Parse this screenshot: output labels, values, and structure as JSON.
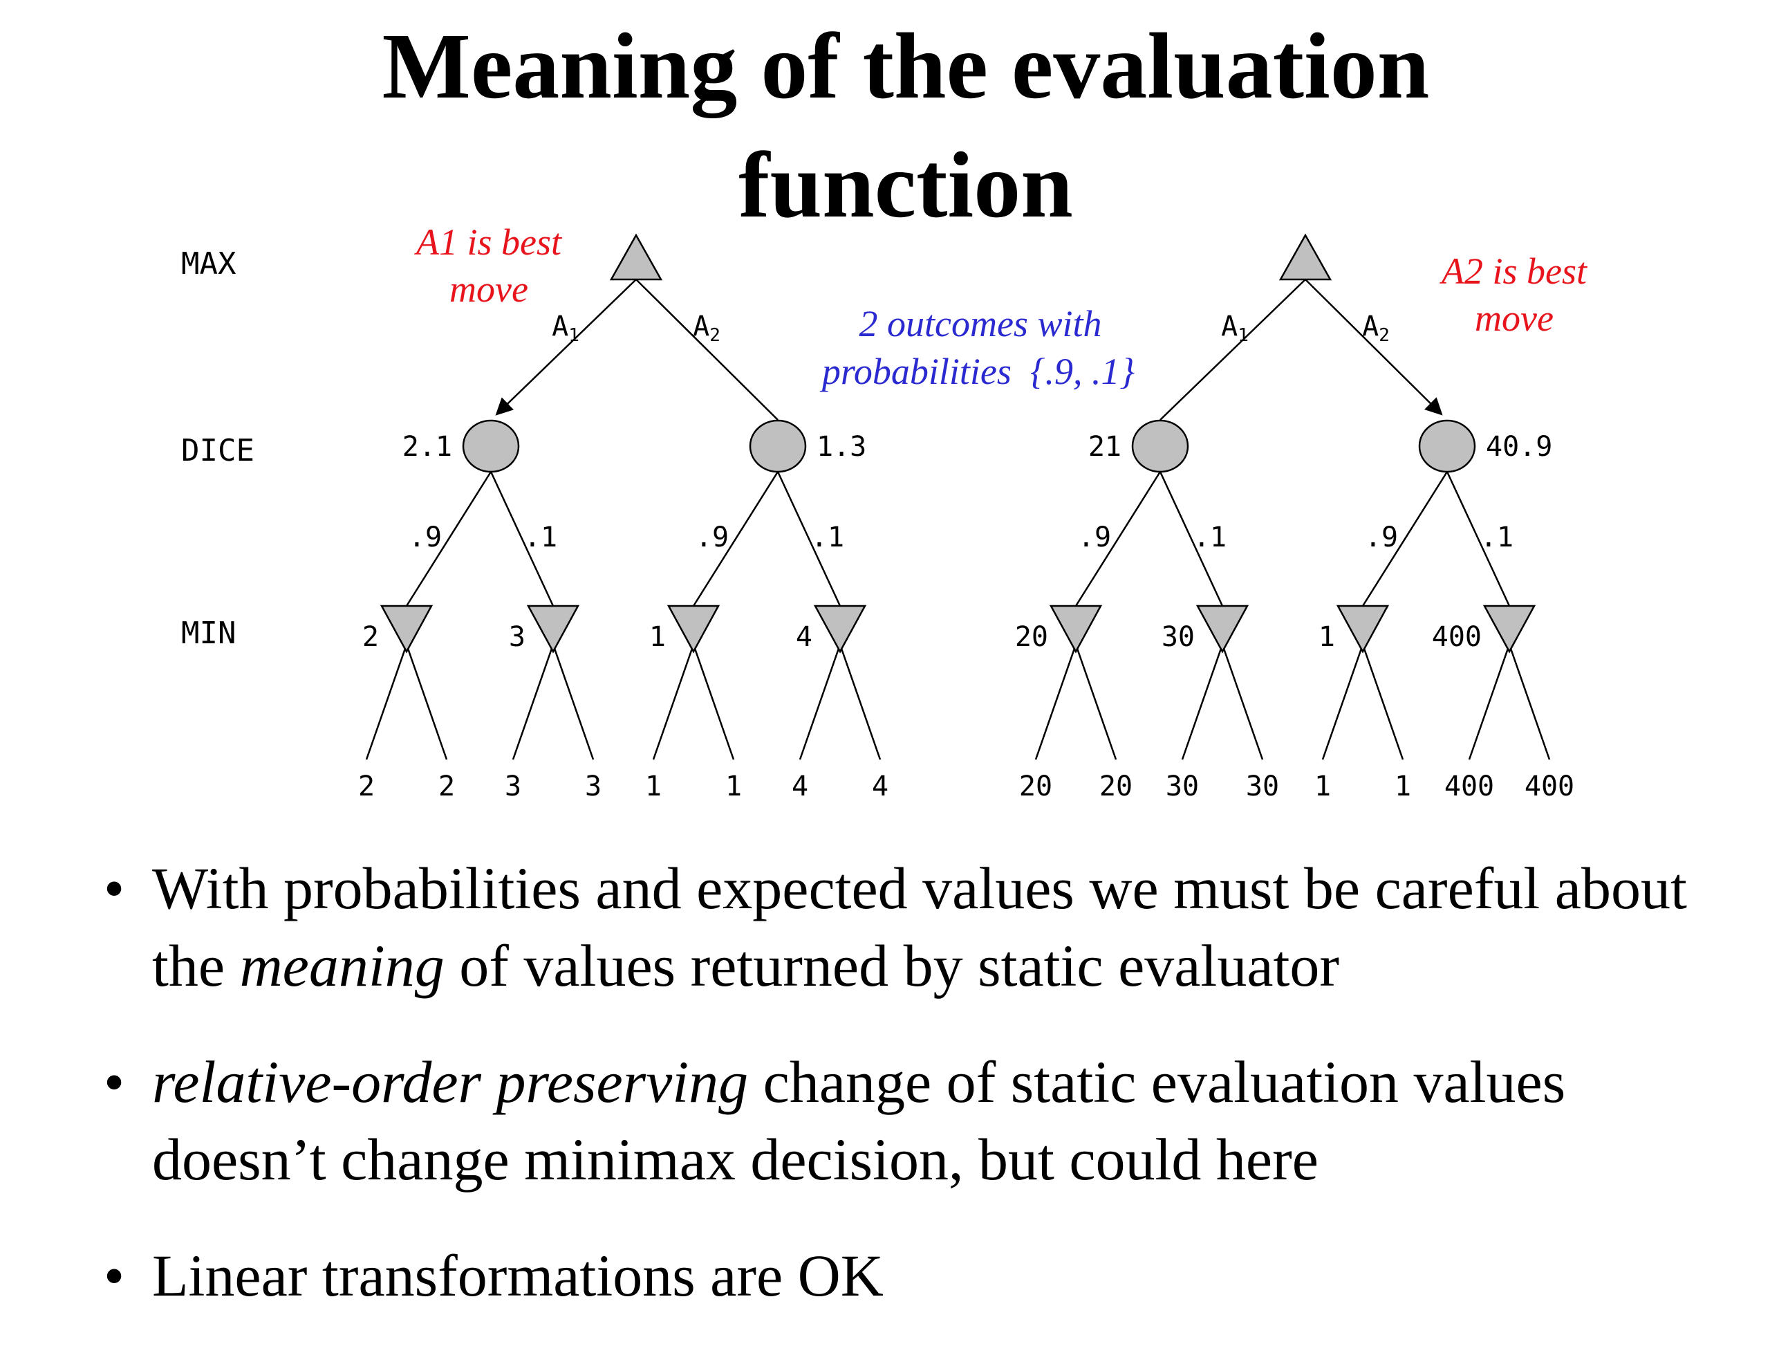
{
  "title": {
    "line1": "Meaning of the evaluation",
    "line2": "function"
  },
  "levels": {
    "max": "MAX",
    "dice": "DICE",
    "min": "MIN"
  },
  "annotations": {
    "left_best": [
      "A1 is best",
      "move"
    ],
    "right_best": [
      "A2 is best",
      "move"
    ],
    "outcomes": [
      "2 outcomes with",
      "probabilities  {.9, .1}"
    ]
  },
  "colors": {
    "node_fill": "#c0c0c0",
    "red_note": "#e8141c",
    "blue_note": "#2a2ad0"
  },
  "trees": [
    {
      "moves": [
        {
          "label": "A",
          "sub": "1",
          "dice_value": "2.1",
          "best": true,
          "probs": [
            ".9",
            ".1"
          ],
          "mins": [
            {
              "value": "2",
              "leaves": [
                "2",
                "2"
              ]
            },
            {
              "value": "3",
              "leaves": [
                "3",
                "3"
              ]
            }
          ]
        },
        {
          "label": "A",
          "sub": "2",
          "dice_value": "1.3",
          "best": false,
          "probs": [
            ".9",
            ".1"
          ],
          "mins": [
            {
              "value": "1",
              "leaves": [
                "1",
                "1"
              ]
            },
            {
              "value": "4",
              "leaves": [
                "4",
                "4"
              ]
            }
          ]
        }
      ]
    },
    {
      "moves": [
        {
          "label": "A",
          "sub": "1",
          "dice_value": "21",
          "best": false,
          "probs": [
            ".9",
            ".1"
          ],
          "mins": [
            {
              "value": "20",
              "leaves": [
                "20",
                "20"
              ]
            },
            {
              "value": "30",
              "leaves": [
                "30",
                "30"
              ]
            }
          ]
        },
        {
          "label": "A",
          "sub": "2",
          "dice_value": "40.9",
          "best": true,
          "probs": [
            ".9",
            ".1"
          ],
          "mins": [
            {
              "value": "1",
              "leaves": [
                "1",
                "1"
              ]
            },
            {
              "value": "400",
              "leaves": [
                "400",
                "400"
              ]
            }
          ]
        }
      ]
    }
  ],
  "bullets": {
    "b1": {
      "pre": "With probabilities and expected values we must be careful about the ",
      "em": "meaning",
      "post": " of values returned by static evaluator"
    },
    "b2": {
      "pre": "",
      "em": "relative-order preserving",
      "post": " change of static evaluation values doesn’t change minimax decision, but could here"
    },
    "b3": {
      "pre": "Linear transformations are OK",
      "em": "",
      "post": ""
    }
  }
}
